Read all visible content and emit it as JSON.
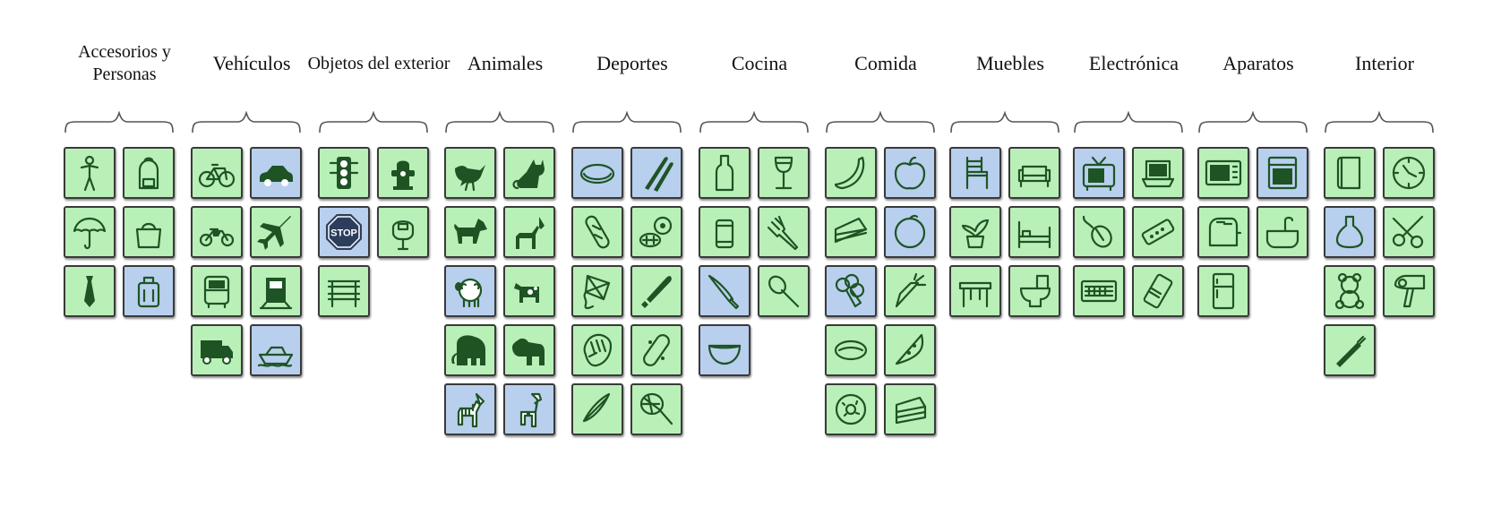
{
  "colors": {
    "green": "#b9f0b8",
    "blue": "#b8cfee",
    "icon": "#1e5424"
  },
  "categories": [
    {
      "title": "Accesorios y Personas",
      "items": [
        {
          "icon": "person-icon",
          "color": "green"
        },
        {
          "icon": "backpack-icon",
          "color": "green"
        },
        {
          "icon": "umbrella-icon",
          "color": "green"
        },
        {
          "icon": "handbag-icon",
          "color": "green"
        },
        {
          "icon": "tie-icon",
          "color": "green"
        },
        {
          "icon": "suitcase-icon",
          "color": "blue"
        }
      ]
    },
    {
      "title": "Vehículos",
      "items": [
        {
          "icon": "bicycle-icon",
          "color": "green"
        },
        {
          "icon": "car-icon",
          "color": "blue"
        },
        {
          "icon": "motorcycle-icon",
          "color": "green"
        },
        {
          "icon": "airplane-icon",
          "color": "green"
        },
        {
          "icon": "bus-icon",
          "color": "green"
        },
        {
          "icon": "train-icon",
          "color": "green"
        },
        {
          "icon": "truck-icon",
          "color": "green"
        },
        {
          "icon": "boat-icon",
          "color": "blue"
        }
      ]
    },
    {
      "title": "Objetos del exterior",
      "items": [
        {
          "icon": "traffic-light-icon",
          "color": "green"
        },
        {
          "icon": "fire-hydrant-icon",
          "color": "green"
        },
        {
          "icon": "stop-sign-icon",
          "color": "blue",
          "label": "STOP"
        },
        {
          "icon": "parking-meter-icon",
          "color": "green"
        },
        {
          "icon": "bench-icon",
          "color": "green"
        }
      ]
    },
    {
      "title": "Animales",
      "items": [
        {
          "icon": "bird-icon",
          "color": "green"
        },
        {
          "icon": "cat-icon",
          "color": "green"
        },
        {
          "icon": "dog-icon",
          "color": "green"
        },
        {
          "icon": "horse-icon",
          "color": "green"
        },
        {
          "icon": "sheep-icon",
          "color": "blue"
        },
        {
          "icon": "cow-icon",
          "color": "green"
        },
        {
          "icon": "elephant-icon",
          "color": "green"
        },
        {
          "icon": "bear-icon",
          "color": "green"
        },
        {
          "icon": "zebra-icon",
          "color": "blue"
        },
        {
          "icon": "giraffe-icon",
          "color": "blue"
        }
      ]
    },
    {
      "title": "Deportes",
      "items": [
        {
          "icon": "frisbee-icon",
          "color": "blue"
        },
        {
          "icon": "skis-icon",
          "color": "blue"
        },
        {
          "icon": "snowboard-icon",
          "color": "green"
        },
        {
          "icon": "sports-ball-icon",
          "color": "green"
        },
        {
          "icon": "kite-icon",
          "color": "green"
        },
        {
          "icon": "baseball-bat-icon",
          "color": "green"
        },
        {
          "icon": "baseball-glove-icon",
          "color": "green"
        },
        {
          "icon": "skateboard-icon",
          "color": "green"
        },
        {
          "icon": "surfboard-icon",
          "color": "green"
        },
        {
          "icon": "tennis-racket-icon",
          "color": "green"
        }
      ]
    },
    {
      "title": "Cocina",
      "items": [
        {
          "icon": "bottle-icon",
          "color": "green"
        },
        {
          "icon": "wine-glass-icon",
          "color": "green"
        },
        {
          "icon": "cup-icon",
          "color": "green"
        },
        {
          "icon": "fork-icon",
          "color": "green"
        },
        {
          "icon": "knife-icon",
          "color": "blue"
        },
        {
          "icon": "spoon-icon",
          "color": "green"
        },
        {
          "icon": "bowl-icon",
          "color": "blue"
        }
      ]
    },
    {
      "title": "Comida",
      "items": [
        {
          "icon": "banana-icon",
          "color": "green"
        },
        {
          "icon": "apple-icon",
          "color": "blue"
        },
        {
          "icon": "sandwich-icon",
          "color": "green"
        },
        {
          "icon": "orange-icon",
          "color": "blue"
        },
        {
          "icon": "broccoli-icon",
          "color": "blue"
        },
        {
          "icon": "carrot-icon",
          "color": "green"
        },
        {
          "icon": "hot-dog-icon",
          "color": "green"
        },
        {
          "icon": "pizza-icon",
          "color": "green"
        },
        {
          "icon": "donut-icon",
          "color": "green"
        },
        {
          "icon": "cake-icon",
          "color": "green"
        }
      ]
    },
    {
      "title": "Muebles",
      "items": [
        {
          "icon": "chair-icon",
          "color": "blue"
        },
        {
          "icon": "couch-icon",
          "color": "green"
        },
        {
          "icon": "potted-plant-icon",
          "color": "green"
        },
        {
          "icon": "bed-icon",
          "color": "green"
        },
        {
          "icon": "dining-table-icon",
          "color": "green"
        },
        {
          "icon": "toilet-icon",
          "color": "green"
        }
      ]
    },
    {
      "title": "Electrónica",
      "items": [
        {
          "icon": "tv-icon",
          "color": "blue"
        },
        {
          "icon": "laptop-icon",
          "color": "green"
        },
        {
          "icon": "mouse-icon",
          "color": "green"
        },
        {
          "icon": "remote-icon",
          "color": "green"
        },
        {
          "icon": "keyboard-icon",
          "color": "green"
        },
        {
          "icon": "cell-phone-icon",
          "color": "green"
        }
      ]
    },
    {
      "title": "Aparatos",
      "items": [
        {
          "icon": "microwave-icon",
          "color": "green"
        },
        {
          "icon": "oven-icon",
          "color": "blue"
        },
        {
          "icon": "toaster-icon",
          "color": "green"
        },
        {
          "icon": "sink-icon",
          "color": "green"
        },
        {
          "icon": "refrigerator-icon",
          "color": "green"
        }
      ]
    },
    {
      "title": "Interior",
      "items": [
        {
          "icon": "book-icon",
          "color": "green"
        },
        {
          "icon": "clock-icon",
          "color": "green"
        },
        {
          "icon": "vase-icon",
          "color": "blue"
        },
        {
          "icon": "scissors-icon",
          "color": "green"
        },
        {
          "icon": "teddy-bear-icon",
          "color": "green"
        },
        {
          "icon": "hair-drier-icon",
          "color": "green"
        },
        {
          "icon": "toothbrush-icon",
          "color": "green"
        }
      ]
    }
  ]
}
